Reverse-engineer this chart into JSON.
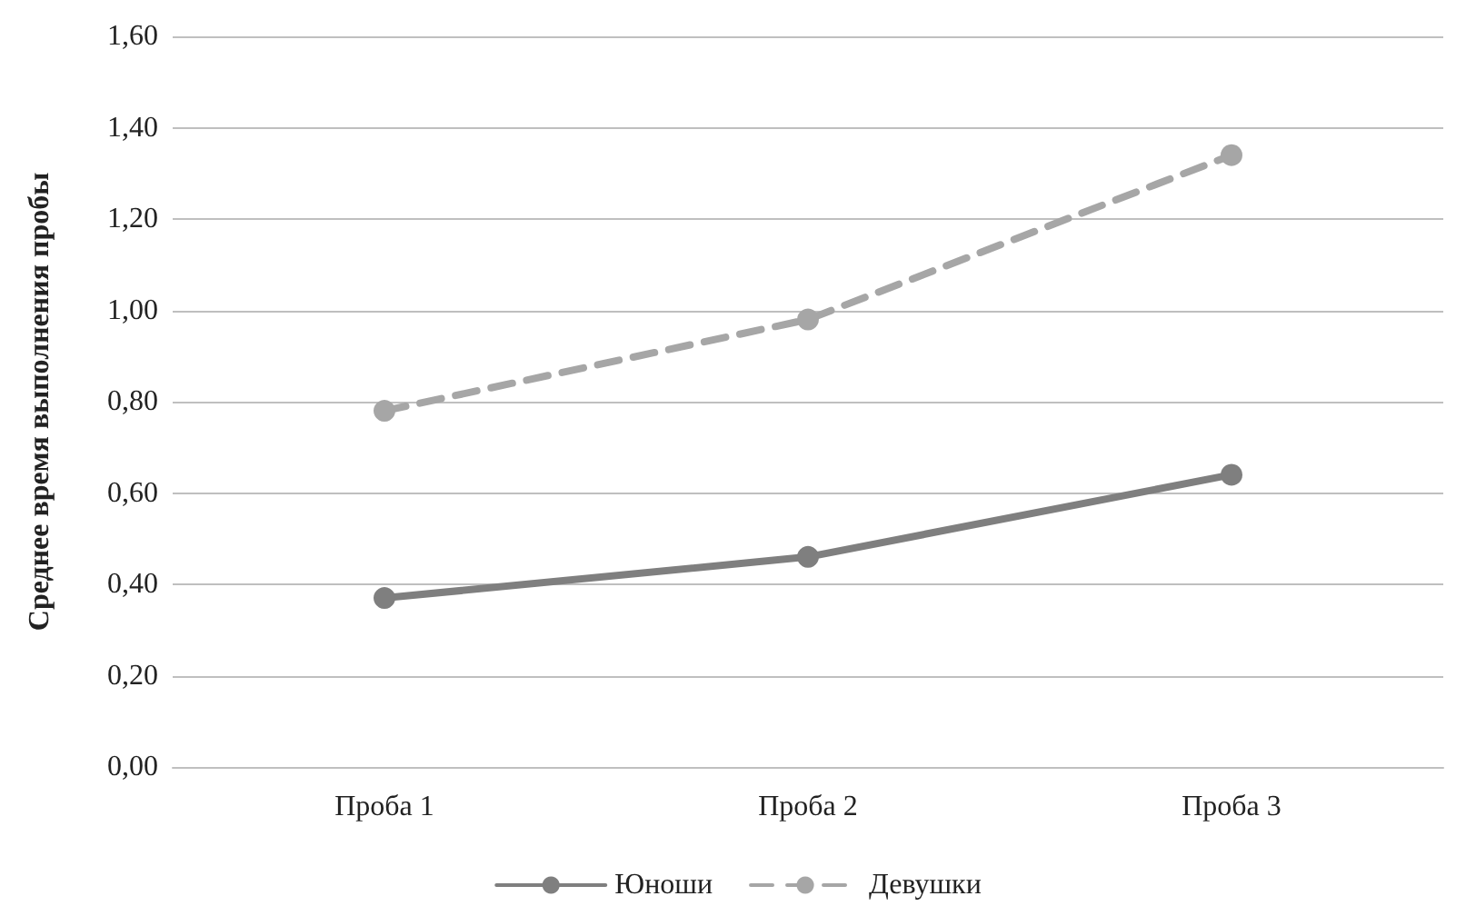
{
  "chart_data": {
    "type": "line",
    "ylabel": "Среднее время выполнения пробы",
    "categories": [
      "Проба 1",
      "Проба 2",
      "Проба 3"
    ],
    "series": [
      {
        "name": "Юноши",
        "color": "#7f7f7f",
        "values": [
          0.37,
          0.46,
          0.64
        ],
        "line_style": "solid"
      },
      {
        "name": "Девушки",
        "color": "#a6a6a6",
        "values": [
          0.78,
          0.98,
          1.34
        ],
        "line_style": "dashed"
      }
    ],
    "ylim": [
      0,
      1.6
    ],
    "yticks": [
      {
        "value": 0,
        "label": "0,00"
      },
      {
        "value": 0.2,
        "label": "0,20"
      },
      {
        "value": 0.4,
        "label": "0,40"
      },
      {
        "value": 0.6,
        "label": "0,60"
      },
      {
        "value": 0.8,
        "label": "0,80"
      },
      {
        "value": 1,
        "label": "1,00"
      },
      {
        "value": 1.2,
        "label": "1,20"
      },
      {
        "value": 1.4,
        "label": "1,40"
      },
      {
        "value": 1.6,
        "label": "1,60"
      }
    ],
    "grid": "y",
    "legend": "bottom",
    "marker": "circle"
  }
}
